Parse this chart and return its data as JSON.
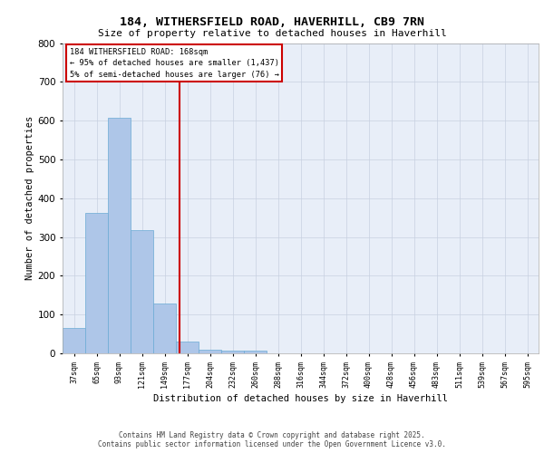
{
  "title_line1": "184, WITHERSFIELD ROAD, HAVERHILL, CB9 7RN",
  "title_line2": "Size of property relative to detached houses in Haverhill",
  "xlabel": "Distribution of detached houses by size in Haverhill",
  "ylabel": "Number of detached properties",
  "categories": [
    "37sqm",
    "65sqm",
    "93sqm",
    "121sqm",
    "149sqm",
    "177sqm",
    "204sqm",
    "232sqm",
    "260sqm",
    "288sqm",
    "316sqm",
    "344sqm",
    "372sqm",
    "400sqm",
    "428sqm",
    "456sqm",
    "483sqm",
    "511sqm",
    "539sqm",
    "567sqm",
    "595sqm"
  ],
  "values": [
    65,
    362,
    607,
    318,
    128,
    30,
    10,
    8,
    8,
    0,
    0,
    0,
    0,
    0,
    0,
    0,
    0,
    0,
    0,
    0,
    0
  ],
  "bar_color": "#aec6e8",
  "bar_edge_color": "#6aaad4",
  "grid_color": "#c8d0e0",
  "bg_color": "#e8eef8",
  "annotation_title": "184 WITHERSFIELD ROAD: 168sqm",
  "annotation_line2": "← 95% of detached houses are smaller (1,437)",
  "annotation_line3": "5% of semi-detached houses are larger (76) →",
  "annotation_box_color": "#ffffff",
  "annotation_border_color": "#cc0000",
  "red_line_color": "#cc0000",
  "ylim": [
    0,
    800
  ],
  "yticks": [
    0,
    100,
    200,
    300,
    400,
    500,
    600,
    700,
    800
  ],
  "footer_line1": "Contains HM Land Registry data © Crown copyright and database right 2025.",
  "footer_line2": "Contains public sector information licensed under the Open Government Licence v3.0."
}
